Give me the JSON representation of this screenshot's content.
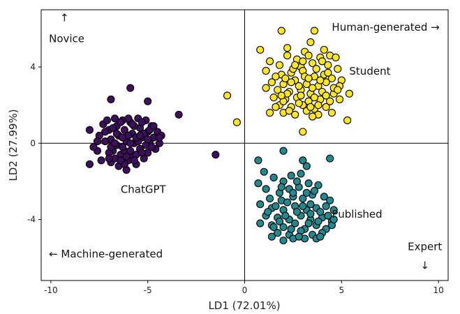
{
  "chart_data": {
    "type": "scatter",
    "xlabel": "LD1 (72.01%)",
    "ylabel": "LD2 (27.99%)",
    "xlim": [
      -10.5,
      10.5
    ],
    "ylim": [
      -7.2,
      7.0
    ],
    "x_ticks": [
      -10,
      -5,
      0,
      5,
      10
    ],
    "y_ticks": [
      -4,
      0,
      4
    ],
    "x_tick_labels": [
      "-10",
      "-5",
      "0",
      "5",
      "10"
    ],
    "y_tick_labels": [
      "-4",
      "0",
      "4"
    ],
    "grid": false,
    "reference_lines": [
      {
        "axis": "x",
        "value": 0
      },
      {
        "axis": "y",
        "value": 0
      }
    ],
    "point_outline": "#000000",
    "annotations": [
      {
        "text": "↑",
        "x": -9.3,
        "y": 6.4
      },
      {
        "text": "Novice",
        "x": -10.1,
        "y": 5.3
      },
      {
        "text": "Human-generated →",
        "x": 4.5,
        "y": 5.9
      },
      {
        "text": "Student",
        "x": 5.4,
        "y": 3.6
      },
      {
        "text": "ChatGPT",
        "x": -6.4,
        "y": -2.6
      },
      {
        "text": "Published",
        "x": 4.5,
        "y": -3.9
      },
      {
        "text": "← Machine-generated",
        "x": -10.1,
        "y": -6.0
      },
      {
        "text": "Expert",
        "x": 9.3,
        "y": -5.6
      },
      {
        "text": "↓",
        "x": 9.3,
        "y": -6.6
      }
    ],
    "series": [
      {
        "color": "#3d0f5c",
        "points": [
          [
            -6.9,
            2.3
          ],
          [
            -5.0,
            2.2
          ],
          [
            -5.9,
            2.9
          ],
          [
            -3.4,
            1.5
          ],
          [
            -1.5,
            -0.6
          ],
          [
            -8.0,
            0.7
          ],
          [
            -8.0,
            -1.1
          ],
          [
            -7.6,
            -0.4
          ],
          [
            -7.3,
            1.0
          ],
          [
            -7.5,
            0.4
          ],
          [
            -7.1,
            1.2
          ],
          [
            -7.0,
            0.7
          ],
          [
            -6.9,
            0.2
          ],
          [
            -6.8,
            -0.4
          ],
          [
            -6.9,
            -1.0
          ],
          [
            -6.7,
            1.3
          ],
          [
            -6.6,
            0.9
          ],
          [
            -6.5,
            0.4
          ],
          [
            -6.6,
            -0.1
          ],
          [
            -6.4,
            -0.6
          ],
          [
            -6.5,
            -1.2
          ],
          [
            -6.3,
            1.2
          ],
          [
            -6.2,
            0.7
          ],
          [
            -6.1,
            0.1
          ],
          [
            -6.2,
            -0.4
          ],
          [
            -6.0,
            -0.9
          ],
          [
            -6.1,
            -1.4
          ],
          [
            -5.9,
            1.1
          ],
          [
            -5.8,
            0.5
          ],
          [
            -5.7,
            0.0
          ],
          [
            -5.8,
            -0.6
          ],
          [
            -5.6,
            -1.1
          ],
          [
            -5.5,
            1.3
          ],
          [
            -5.4,
            0.8
          ],
          [
            -5.3,
            0.3
          ],
          [
            -5.4,
            -0.3
          ],
          [
            -5.2,
            -0.8
          ],
          [
            -5.1,
            1.2
          ],
          [
            -5.0,
            0.6
          ],
          [
            -4.9,
            0.1
          ],
          [
            -5.0,
            -0.5
          ],
          [
            -4.8,
            0.9
          ],
          [
            -4.7,
            0.3
          ],
          [
            -4.6,
            -0.3
          ],
          [
            -4.5,
            0.6
          ],
          [
            -4.4,
            0.0
          ],
          [
            -4.3,
            0.4
          ],
          [
            -7.8,
            -0.2
          ],
          [
            -7.4,
            -0.9
          ],
          [
            -7.2,
            0.1
          ],
          [
            -7.0,
            -0.5
          ],
          [
            -6.8,
            0.8
          ],
          [
            -6.7,
            -0.8
          ],
          [
            -6.4,
            1.1
          ],
          [
            -6.3,
            -0.2
          ],
          [
            -6.2,
            -1.1
          ],
          [
            -6.0,
            0.4
          ],
          [
            -5.9,
            -0.4
          ],
          [
            -5.7,
            0.9
          ],
          [
            -5.6,
            -0.6
          ],
          [
            -5.5,
            0.1
          ],
          [
            -5.3,
            -0.5
          ],
          [
            -5.2,
            0.5
          ],
          [
            -5.1,
            -0.1
          ],
          [
            -4.9,
            0.7
          ],
          [
            -6.6,
            0.5
          ],
          [
            -6.1,
            -0.7
          ],
          [
            -5.8,
            1.0
          ],
          [
            -7.2,
            0.6
          ],
          [
            -6.9,
            -0.2
          ],
          [
            -6.0,
            1.3
          ],
          [
            -5.6,
            0.3
          ],
          [
            -5.3,
            1.1
          ],
          [
            -4.8,
            -0.2
          ],
          [
            -6.4,
            -0.9
          ],
          [
            -7.6,
            0.1
          ],
          [
            -7.0,
            -0.8
          ],
          [
            -5.7,
            -0.9
          ],
          [
            -5.0,
            0.2
          ],
          [
            -6.7,
            0.0
          ],
          [
            -4.4,
            0.3
          ],
          [
            -5.4,
            0.4
          ],
          [
            -6.3,
            0.3
          ],
          [
            -4.7,
            0.9
          ],
          [
            -5.9,
            0.0
          ]
        ]
      },
      {
        "color": "#fde725",
        "points": [
          [
            -0.9,
            2.5
          ],
          [
            -0.4,
            1.1
          ],
          [
            1.9,
            5.9
          ],
          [
            3.6,
            5.9
          ],
          [
            0.8,
            4.9
          ],
          [
            3.4,
            5.3
          ],
          [
            4.1,
            4.9
          ],
          [
            2.2,
            4.6
          ],
          [
            2.7,
            4.4
          ],
          [
            3.1,
            4.8
          ],
          [
            3.9,
            4.5
          ],
          [
            4.4,
            4.6
          ],
          [
            4.7,
            4.5
          ],
          [
            1.3,
            4.3
          ],
          [
            1.8,
            4.1
          ],
          [
            2.9,
            4.0
          ],
          [
            3.5,
            4.2
          ],
          [
            4.3,
            4.1
          ],
          [
            4.8,
            3.9
          ],
          [
            1.1,
            3.8
          ],
          [
            1.9,
            3.6
          ],
          [
            2.4,
            3.7
          ],
          [
            3.0,
            3.8
          ],
          [
            3.6,
            3.5
          ],
          [
            4.1,
            3.6
          ],
          [
            4.5,
            3.4
          ],
          [
            5.0,
            3.3
          ],
          [
            1.4,
            3.2
          ],
          [
            2.0,
            3.1
          ],
          [
            2.6,
            3.3
          ],
          [
            3.2,
            3.1
          ],
          [
            3.8,
            3.0
          ],
          [
            4.2,
            3.2
          ],
          [
            4.9,
            3.0
          ],
          [
            1.1,
            2.9
          ],
          [
            1.7,
            2.8
          ],
          [
            2.3,
            2.7
          ],
          [
            2.9,
            2.8
          ],
          [
            3.4,
            2.6
          ],
          [
            4.0,
            2.7
          ],
          [
            4.6,
            2.6
          ],
          [
            5.4,
            2.6
          ],
          [
            1.5,
            2.4
          ],
          [
            2.1,
            2.3
          ],
          [
            2.7,
            2.4
          ],
          [
            3.3,
            2.2
          ],
          [
            3.9,
            2.3
          ],
          [
            4.4,
            2.2
          ],
          [
            4.9,
            2.3
          ],
          [
            1.8,
            2.0
          ],
          [
            2.4,
            1.9
          ],
          [
            3.0,
            2.0
          ],
          [
            3.6,
            1.8
          ],
          [
            4.2,
            1.9
          ],
          [
            1.3,
            1.6
          ],
          [
            2.0,
            1.6
          ],
          [
            2.6,
            1.5
          ],
          [
            3.2,
            1.7
          ],
          [
            3.8,
            1.5
          ],
          [
            4.5,
            1.6
          ],
          [
            5.3,
            1.2
          ],
          [
            3.0,
            0.6
          ],
          [
            2.2,
            5.0
          ],
          [
            3.3,
            4.6
          ],
          [
            2.5,
            3.9
          ],
          [
            3.7,
            3.9
          ],
          [
            2.1,
            3.4
          ],
          [
            3.1,
            3.5
          ],
          [
            4.3,
            3.7
          ],
          [
            2.8,
            3.0
          ],
          [
            3.5,
            2.9
          ],
          [
            4.6,
            2.9
          ],
          [
            2.2,
            2.6
          ],
          [
            3.6,
            2.4
          ],
          [
            4.2,
            2.5
          ],
          [
            2.8,
            2.1
          ],
          [
            3.4,
            1.9
          ],
          [
            2.3,
            1.7
          ],
          [
            3.5,
            1.4
          ],
          [
            1.6,
            1.9
          ],
          [
            2.6,
            4.1
          ],
          [
            3.9,
            3.3
          ],
          [
            1.6,
            3.5
          ],
          [
            4.0,
            4.3
          ],
          [
            2.9,
            2.5
          ],
          [
            3.8,
            2.0
          ],
          [
            3.0,
            4.3
          ],
          [
            2.0,
            2.2
          ],
          [
            4.8,
            2.8
          ],
          [
            2.4,
            3.2
          ],
          [
            3.3,
            3.4
          ],
          [
            1.9,
            2.5
          ]
        ]
      },
      {
        "color": "#23898e",
        "points": [
          [
            2.0,
            -0.4
          ],
          [
            3.0,
            -0.9
          ],
          [
            4.4,
            -0.8
          ],
          [
            0.7,
            -0.9
          ],
          [
            1.0,
            -1.5
          ],
          [
            0.7,
            -2.1
          ],
          [
            1.1,
            -2.4
          ],
          [
            1.5,
            -1.8
          ],
          [
            2.0,
            -2.0
          ],
          [
            2.4,
            -1.7
          ],
          [
            2.9,
            -1.6
          ],
          [
            3.2,
            -1.2
          ],
          [
            1.8,
            -2.6
          ],
          [
            2.3,
            -2.4
          ],
          [
            2.8,
            -2.3
          ],
          [
            3.3,
            -2.1
          ],
          [
            3.8,
            -2.2
          ],
          [
            1.3,
            -2.9
          ],
          [
            1.9,
            -3.0
          ],
          [
            2.5,
            -2.8
          ],
          [
            3.0,
            -2.9
          ],
          [
            3.5,
            -2.7
          ],
          [
            4.1,
            -2.8
          ],
          [
            4.4,
            -3.0
          ],
          [
            0.8,
            -3.2
          ],
          [
            1.4,
            -3.4
          ],
          [
            2.0,
            -3.5
          ],
          [
            2.6,
            -3.3
          ],
          [
            3.2,
            -3.5
          ],
          [
            3.7,
            -3.4
          ],
          [
            4.2,
            -3.3
          ],
          [
            4.6,
            -3.5
          ],
          [
            1.1,
            -3.8
          ],
          [
            1.7,
            -3.9
          ],
          [
            2.3,
            -4.0
          ],
          [
            2.9,
            -3.8
          ],
          [
            3.4,
            -4.0
          ],
          [
            4.0,
            -3.9
          ],
          [
            4.5,
            -4.1
          ],
          [
            1.4,
            -4.3
          ],
          [
            2.0,
            -4.4
          ],
          [
            2.6,
            -4.2
          ],
          [
            3.1,
            -4.5
          ],
          [
            3.7,
            -4.3
          ],
          [
            4.2,
            -4.5
          ],
          [
            1.7,
            -4.7
          ],
          [
            2.3,
            -4.8
          ],
          [
            2.9,
            -4.6
          ],
          [
            3.5,
            -4.8
          ],
          [
            4.0,
            -4.7
          ],
          [
            0.8,
            -4.2
          ],
          [
            1.4,
            -4.9
          ],
          [
            2.5,
            -5.0
          ],
          [
            3.1,
            -5.0
          ],
          [
            3.7,
            -5.0
          ],
          [
            2.0,
            -5.1
          ],
          [
            4.5,
            -4.3
          ],
          [
            2.2,
            -3.1
          ],
          [
            2.7,
            -3.6
          ],
          [
            3.4,
            -3.2
          ],
          [
            3.9,
            -3.6
          ],
          [
            1.6,
            -3.3
          ],
          [
            2.4,
            -4.5
          ],
          [
            3.3,
            -4.2
          ],
          [
            3.9,
            -4.9
          ],
          [
            1.9,
            -2.3
          ],
          [
            3.6,
            -2.5
          ],
          [
            2.7,
            -2.0
          ],
          [
            4.3,
            -3.8
          ],
          [
            1.2,
            -3.6
          ],
          [
            3.0,
            -3.3
          ],
          [
            2.1,
            -3.8
          ],
          [
            3.8,
            -4.1
          ],
          [
            2.8,
            -4.9
          ],
          [
            1.5,
            -4.4
          ],
          [
            4.6,
            -4.0
          ],
          [
            2.5,
            -2.6
          ],
          [
            3.4,
            -3.7
          ],
          [
            1.8,
            -4.1
          ],
          [
            3.2,
            -2.6
          ]
        ]
      }
    ]
  }
}
